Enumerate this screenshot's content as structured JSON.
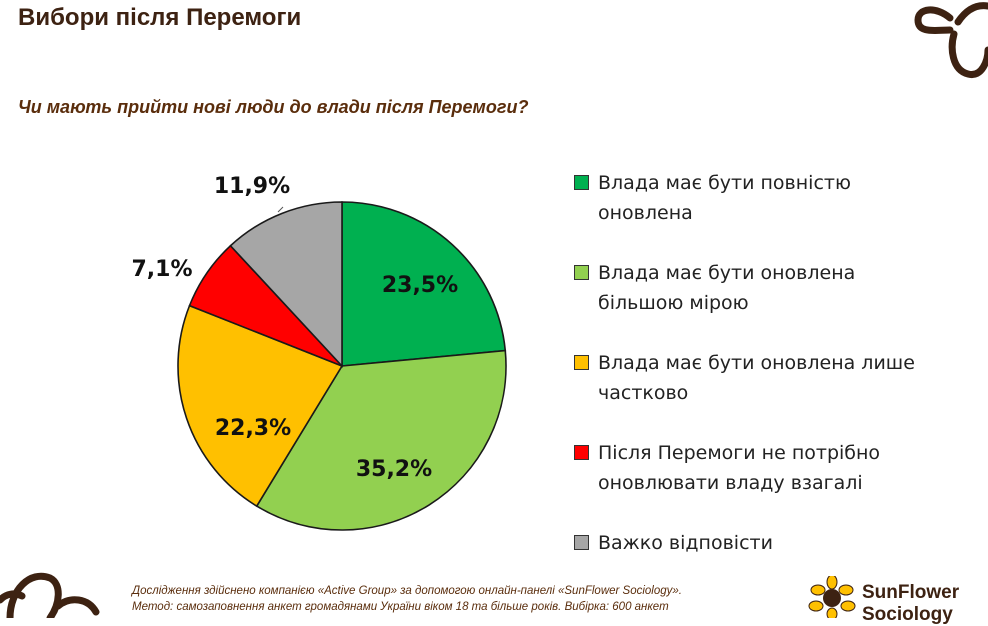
{
  "header": {
    "title": "Вибори після Перемоги"
  },
  "question": "Чи мають прийти нові люди до влади після Перемоги?",
  "chart_data": {
    "type": "pie",
    "title": "",
    "slices": [
      {
        "label": "Влада має бути повністю оновлена",
        "value": 23.5,
        "display": "23,5%",
        "color": "#00b050"
      },
      {
        "label": "Влада має бути оновлена більшою мірою",
        "value": 35.2,
        "display": "35,2%",
        "color": "#92d050"
      },
      {
        "label": "Влада має бути оновлена лише частково",
        "value": 22.3,
        "display": "22,3%",
        "color": "#ffc000"
      },
      {
        "label": "Після Перемоги не потрібно оновлювати владу взагалі",
        "value": 7.1,
        "display": "7,1%",
        "color": "#ff0000"
      },
      {
        "label": "Важко відповісти",
        "value": 11.9,
        "display": "11,9%",
        "color": "#a6a6a6"
      }
    ],
    "legend_position": "right"
  },
  "legend": {
    "items": [
      {
        "line1": "Влада має бути повністю",
        "line2": "оновлена"
      },
      {
        "line1": "Влада має бути оновлена",
        "line2": "більшою мірою"
      },
      {
        "line1": "Влада має бути оновлена лише",
        "line2": "частково"
      },
      {
        "line1": "Після Перемоги не потрібно",
        "line2": "оновлювати владу взагалі"
      },
      {
        "line1": "Важко відповісти",
        "line2": ""
      }
    ]
  },
  "footer": {
    "line1": "Дослідження здійснено компанією «Active Group» за допомогою онлайн-панелі «SunFlower Sociology».",
    "line2": "Метод: самозаповнення анкет громадянами України віком 18 та більше років. Вибірка: 600 анкет"
  },
  "brand": {
    "name_line1": "SunFlower",
    "name_line2": "Sociology"
  },
  "icons": {
    "decor": "sunflower-outline-icon",
    "logo": "sunflower-logo-icon"
  }
}
